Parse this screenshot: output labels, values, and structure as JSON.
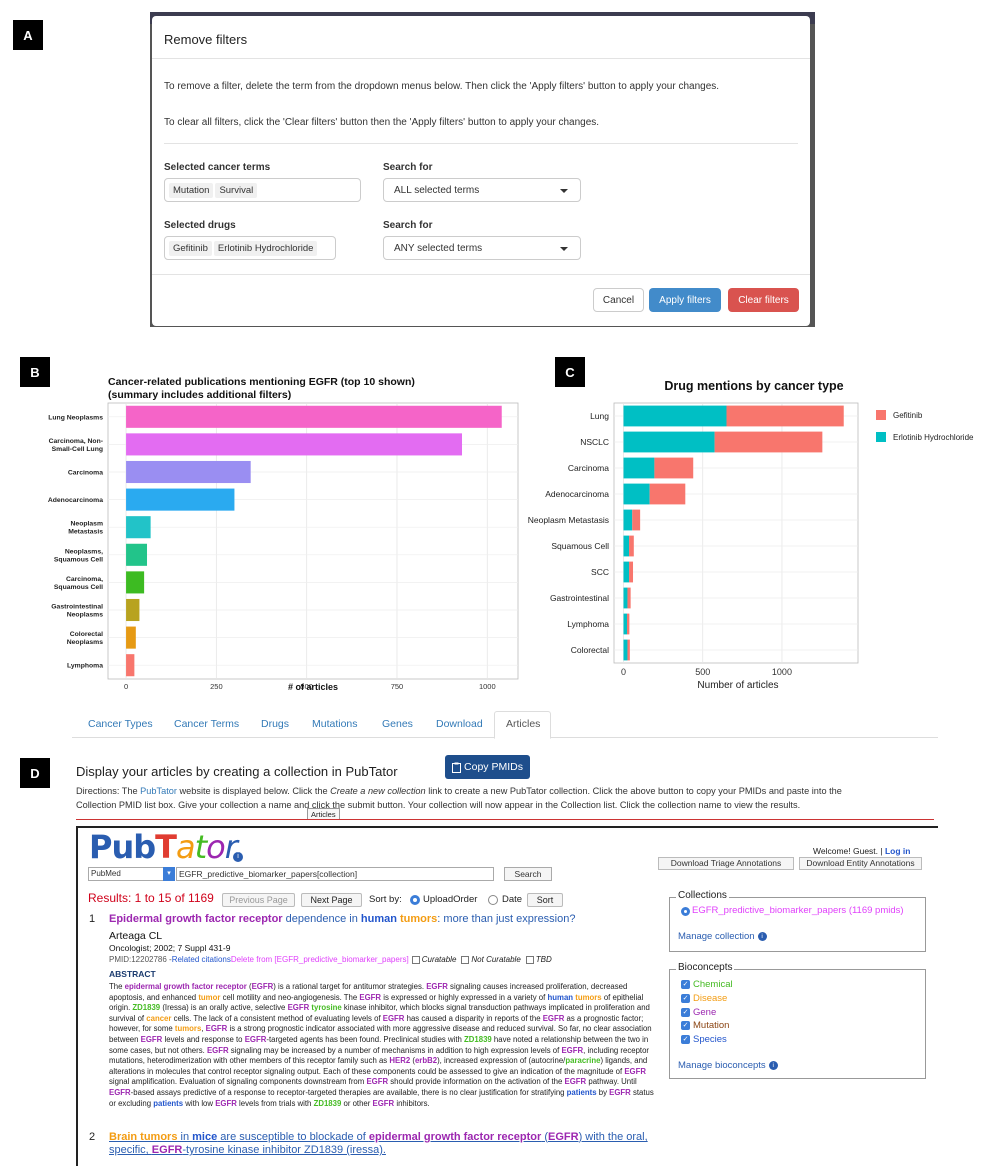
{
  "labels": {
    "a": "A",
    "b": "B",
    "c": "C",
    "d": "D"
  },
  "modal": {
    "title": "Remove filters",
    "line1": "To remove a filter, delete the term from the dropdown menus below. Then click the 'Apply filters' button to apply your changes.",
    "line2": "To clear all filters, click the 'Clear filters' button then the 'Apply filters' button to apply your changes.",
    "cancer_label": "Selected cancer terms",
    "cancer_tags": [
      "Mutation",
      "Survival"
    ],
    "search_label": "Search for",
    "search_cancer_value": "ALL selected terms",
    "drugs_label": "Selected drugs",
    "drug_tags": [
      "Gefitinib",
      "Erlotinib Hydrochloride"
    ],
    "search_drugs_value": "ANY selected terms",
    "cancel": "Cancel",
    "apply": "Apply filters",
    "clear": "Clear filters",
    "colors": {
      "apply": "#428bca",
      "clear": "#d9534f"
    }
  },
  "chart_data": [
    {
      "type": "bar",
      "orientation": "horizontal",
      "title": "Cancer-related publications mentioning EGFR  (top 10 shown)",
      "subtitle": "(summary includes additional filters)",
      "xlabel": "# of articles",
      "categories": [
        [
          "Lung Neoplasms"
        ],
        [
          "Carcinoma, Non-",
          "Small-Cell Lung"
        ],
        [
          "Carcinoma"
        ],
        [
          "Adenocarcinoma"
        ],
        [
          "Neoplasm",
          "Metastasis"
        ],
        [
          "Neoplasms,",
          "Squamous Cell"
        ],
        [
          "Carcinoma,",
          "Squamous Cell"
        ],
        [
          "Gastrointestinal",
          "Neoplasms"
        ],
        [
          "Colorectal",
          "Neoplasms"
        ],
        [
          "Lymphoma"
        ]
      ],
      "values": [
        1040,
        930,
        345,
        300,
        68,
        58,
        50,
        37,
        27,
        23
      ],
      "colors": [
        "#f564c8",
        "#e36cf2",
        "#9a8ef2",
        "#2aaaf0",
        "#22c3c8",
        "#22c48a",
        "#3dbb22",
        "#b8a31f",
        "#e69a14",
        "#f8766d"
      ],
      "xticks": [
        0,
        250,
        500,
        750,
        1000
      ],
      "xlim": [
        -50,
        1085
      ],
      "grid": true
    },
    {
      "type": "bar",
      "orientation": "horizontal",
      "stacked": true,
      "title": "Drug mentions by cancer type",
      "xlabel": "Number of articles",
      "categories": [
        "Lung",
        "NSCLC",
        "Carcinoma",
        "Adenocarcinoma",
        "Neoplasm Metastasis",
        "Squamous Cell",
        "SCC",
        "Gastrointestinal",
        "Lymphoma",
        "Colorectal"
      ],
      "series": [
        {
          "name": "Erlotinib Hydrochloride",
          "color": "#00bfc4",
          "values": [
            650,
            575,
            195,
            165,
            55,
            35,
            35,
            25,
            22,
            25
          ]
        },
        {
          "name": "Gefitinib",
          "color": "#f8766d",
          "values": [
            740,
            680,
            245,
            225,
            50,
            30,
            25,
            20,
            15,
            15
          ]
        }
      ],
      "legend": [
        "Gefitinib",
        "Erlotinib Hydrochloride"
      ],
      "legend_position": "right",
      "xticks": [
        0,
        500,
        1000
      ],
      "xlim": [
        -60,
        1480
      ],
      "grid": true
    }
  ],
  "tabs": [
    "Cancer Types",
    "Cancer Terms",
    "Drugs",
    "Mutations",
    "Genes",
    "Download",
    "Articles"
  ],
  "articles_panel": {
    "heading": "Display your articles by creating a collection in PubTator",
    "copy_button": "Copy PMIDs",
    "directions_a": "Directions: The ",
    "directions_link": "PubTator",
    "directions_b": " website is displayed below. Click the ",
    "directions_em": "Create a new collection",
    "directions_c": " link to create a new PubTator collection. Click the above button to copy your PMIDs and paste into the",
    "directions_line2": "Collection PMID list box. Give your collection a name and click the submit button. Your collection will now appear in the Collection list. Click the collection name to view the results.",
    "tooltip": "Articles"
  },
  "pubtator": {
    "logo": [
      "P",
      "u",
      "b",
      "T",
      "a",
      "t",
      "o",
      "r"
    ],
    "welcome": "Welcome! Guest. | ",
    "login": "Log in",
    "db_select": "PubMed",
    "query": "EGFR_predictive_biomarker_papers[collection]",
    "search": "Search",
    "dl_triage": "Download Triage Annotations",
    "dl_entity": "Download Entity Annotations",
    "results": "Results: 1 to 15 of 1169",
    "prev": "Previous Page",
    "next": "Next Page",
    "sort_by": "Sort by:",
    "opt_upload": "UploadOrder",
    "opt_date": "Date",
    "sort_btn": "Sort",
    "collections_title": "Collections",
    "collection_item": "EGFR_predictive_biomarker_papers (1169 pmids)",
    "manage_collection": "Manage collection",
    "bioconcepts_title": "Bioconcepts",
    "bioconcepts": [
      {
        "label": "Chemical",
        "color": "#44bb22"
      },
      {
        "label": "Disease",
        "color": "#f39c12"
      },
      {
        "label": "Gene",
        "color": "#9c27b0"
      },
      {
        "label": "Mutation",
        "color": "#8b4513"
      },
      {
        "label": "Species",
        "color": "#2255cc"
      }
    ],
    "manage_bioconcepts": "Manage bioconcepts",
    "a1_num": "1",
    "a1_title": [
      "Epidermal growth factor receptor",
      " dependence in ",
      "human",
      " ",
      "tumors",
      ": more than just expression?"
    ],
    "a1_author": "Arteaga CL",
    "a1_journal": "Oncologist; 2002; 7 Suppl 431-9",
    "a1_pmid": "PMID:12202786 - ",
    "a1_related": "Related citations",
    "a1_delete": " Delete from [EGFR_predictive_biomarker_papers]",
    "a1_curatable": "Curatable",
    "a1_notcuratable": "Not Curatable",
    "a1_tbd": "TBD",
    "a1_abstract_label": "ABSTRACT",
    "a1_abstract": [
      [
        "The ",
        ""
      ],
      [
        "epidermal growth factor receptor",
        "g"
      ],
      [
        " (",
        ""
      ],
      [
        "EGFR",
        "g"
      ],
      [
        ") is a rational target for antitumor strategies. ",
        ""
      ],
      [
        "EGFR",
        "g"
      ],
      [
        " signaling causes increased proliferation, decreased apoptosis, and enhanced ",
        ""
      ],
      [
        "tumor",
        "d"
      ],
      [
        " cell motility and neo-angiogenesis. The ",
        ""
      ],
      [
        "EGFR",
        "g"
      ],
      [
        " is expressed or highly expressed in a variety of ",
        ""
      ],
      [
        "human",
        "s"
      ],
      [
        " ",
        ""
      ],
      [
        "tumors",
        "d"
      ],
      [
        " of epithelial origin. ",
        ""
      ],
      [
        "ZD1839",
        "c"
      ],
      [
        " (Iressa) is an orally active, selective ",
        ""
      ],
      [
        "EGFR",
        "g"
      ],
      [
        " ",
        ""
      ],
      [
        "tyrosine",
        "c"
      ],
      [
        " kinase inhibitor, which blocks signal transduction pathways implicated in proliferation and survival of ",
        ""
      ],
      [
        "cancer",
        "d"
      ],
      [
        " cells. The lack of a consistent method of evaluating levels of ",
        ""
      ],
      [
        "EGFR",
        "g"
      ],
      [
        " has caused a disparity in reports of the ",
        ""
      ],
      [
        "EGFR",
        "g"
      ],
      [
        " as a prognostic factor; however, for some ",
        ""
      ],
      [
        "tumors",
        "d"
      ],
      [
        ", ",
        ""
      ],
      [
        "EGFR",
        "g"
      ],
      [
        " is a strong prognostic indicator associated with more aggressive disease and reduced survival. So far, no clear association between ",
        ""
      ],
      [
        "EGFR",
        "g"
      ],
      [
        " levels and response to ",
        ""
      ],
      [
        "EGFR",
        "g"
      ],
      [
        "-targeted agents has been found. Preclinical studies with ",
        ""
      ],
      [
        "ZD1839",
        "c"
      ],
      [
        " have noted a relationship between the two in some cases, but not others. ",
        ""
      ],
      [
        "EGFR",
        "g"
      ],
      [
        " signaling may be increased by a number of mechanisms in addition to high expression levels of ",
        ""
      ],
      [
        "EGFR",
        "g"
      ],
      [
        ", including receptor mutations, heterodimerization with other members of this receptor family such as ",
        ""
      ],
      [
        "HER2",
        "g"
      ],
      [
        " (",
        ""
      ],
      [
        "erbB2",
        "g"
      ],
      [
        "), increased expression of (autocrine/",
        ""
      ],
      [
        "paracrine",
        "c"
      ],
      [
        ") ligands, and alterations in molecules that control receptor signaling output. Each of these components could be assessed to give an indication of the magnitude of ",
        ""
      ],
      [
        "EGFR",
        "g"
      ],
      [
        " signal amplification. Evaluation of signaling components downstream from ",
        ""
      ],
      [
        "EGFR",
        "g"
      ],
      [
        " should provide information on the activation of the ",
        ""
      ],
      [
        "EGFR",
        "g"
      ],
      [
        " pathway. Until ",
        ""
      ],
      [
        "EGFR",
        "g"
      ],
      [
        "-based assays predictive of a response to receptor-targeted therapies are available, there is no clear justification for stratifying ",
        ""
      ],
      [
        "patients",
        "s"
      ],
      [
        " by ",
        ""
      ],
      [
        "EGFR",
        "g"
      ],
      [
        " status or excluding ",
        ""
      ],
      [
        "patients",
        "s"
      ],
      [
        " with low ",
        ""
      ],
      [
        "EGFR",
        "g"
      ],
      [
        " levels from trials with ",
        ""
      ],
      [
        "ZD1839",
        "c"
      ],
      [
        " or other ",
        ""
      ],
      [
        "EGFR",
        "g"
      ],
      [
        " inhibitors.",
        ""
      ]
    ],
    "a2_num": "2",
    "a2_title_l1": [
      [
        "Brain tumors",
        "d"
      ],
      [
        " in ",
        ""
      ],
      [
        "mice",
        "s"
      ],
      [
        " are susceptible to blockade of ",
        ""
      ],
      [
        "epidermal growth factor receptor",
        "g"
      ],
      [
        " (",
        ""
      ],
      [
        "EGFR",
        "g"
      ],
      [
        ") with the oral,",
        ""
      ]
    ],
    "a2_title_l2": [
      [
        "specific, ",
        ""
      ],
      [
        "EGFR",
        "g"
      ],
      [
        "-tyrosine kinase inhibitor ZD1839 (iressa).",
        ""
      ]
    ]
  }
}
